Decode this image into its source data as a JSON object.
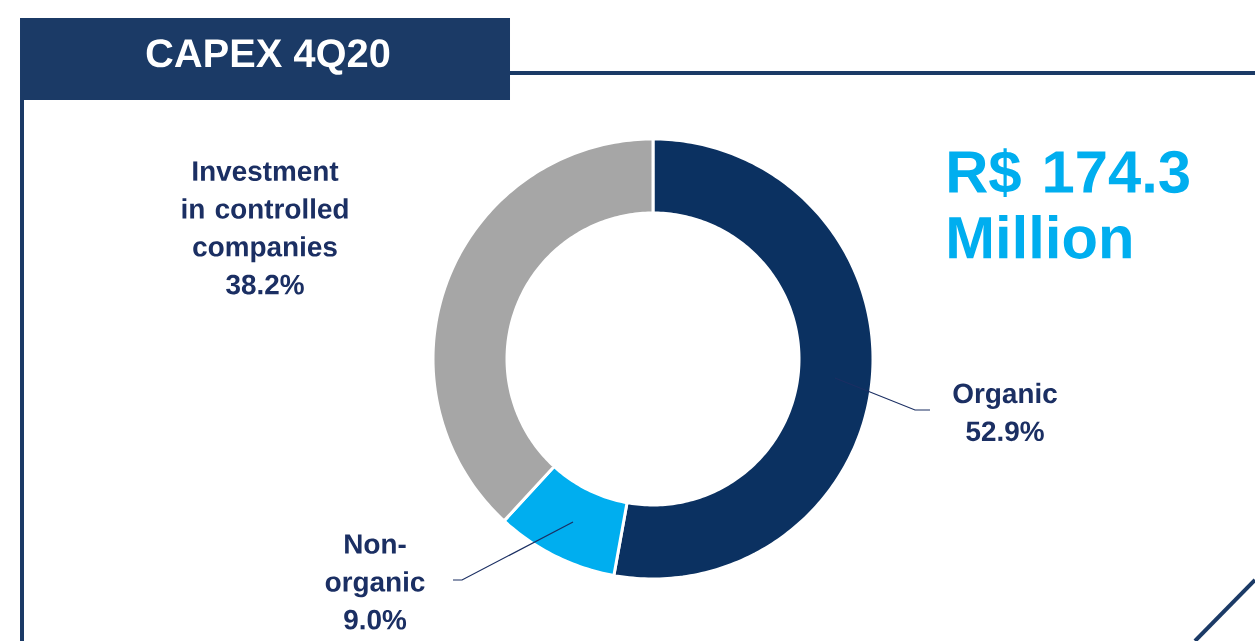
{
  "chart_data": {
    "type": "donut",
    "title": "CAPEX 4Q20",
    "categories": [
      "Organic",
      "Non-organic",
      "Investment in controlled companies"
    ],
    "values": [
      52.9,
      9.0,
      38.2
    ],
    "colors": [
      "#0b3161",
      "#00aeef",
      "#a6a6a6"
    ],
    "value_labels": [
      "52.9%",
      "9.0%",
      "38.2%"
    ],
    "annotations": [
      "R$ 174.3 Million"
    ]
  }
}
